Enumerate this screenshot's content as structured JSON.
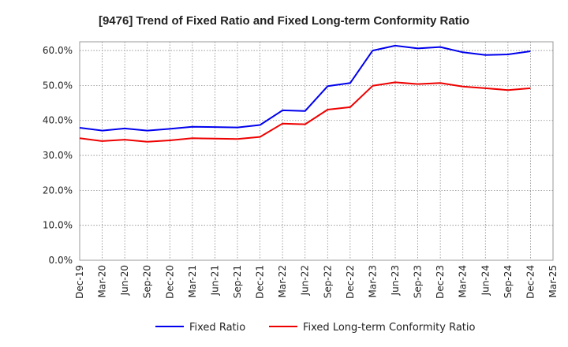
{
  "chart_data": {
    "type": "line",
    "title": "[9476]  Trend of Fixed Ratio and Fixed Long-term Conformity Ratio",
    "xlabel": "",
    "ylabel": "",
    "categories": [
      "Dec-19",
      "Mar-20",
      "Jun-20",
      "Sep-20",
      "Dec-20",
      "Mar-21",
      "Jun-21",
      "Sep-21",
      "Dec-21",
      "Mar-22",
      "Jun-22",
      "Sep-22",
      "Dec-22",
      "Mar-23",
      "Jun-23",
      "Sep-23",
      "Dec-23",
      "Mar-24",
      "Jun-24",
      "Sep-24",
      "Dec-24",
      "Mar-25"
    ],
    "ylim": [
      0,
      62.5
    ],
    "yticks": [
      0,
      10,
      20,
      30,
      40,
      50,
      60
    ],
    "ytick_labels": [
      "0.0%",
      "10.0%",
      "20.0%",
      "30.0%",
      "40.0%",
      "50.0%",
      "60.0%"
    ],
    "grid": true,
    "legend_position": "bottom",
    "series": [
      {
        "name": "Fixed Ratio",
        "color": "#0000ee",
        "values": [
          37.9,
          37.1,
          37.7,
          37.1,
          37.6,
          38.2,
          38.1,
          38.0,
          38.7,
          42.9,
          42.7,
          49.8,
          50.7,
          60.0,
          61.4,
          60.6,
          61.0,
          59.5,
          58.7,
          58.9,
          59.8,
          null
        ]
      },
      {
        "name": "Fixed Long-term Conformity Ratio",
        "color": "#ee0000",
        "values": [
          34.9,
          34.1,
          34.5,
          33.9,
          34.3,
          34.9,
          34.8,
          34.7,
          35.3,
          39.1,
          38.9,
          43.1,
          43.8,
          49.9,
          50.9,
          50.4,
          50.7,
          49.7,
          49.2,
          48.7,
          49.2,
          null
        ]
      }
    ]
  }
}
